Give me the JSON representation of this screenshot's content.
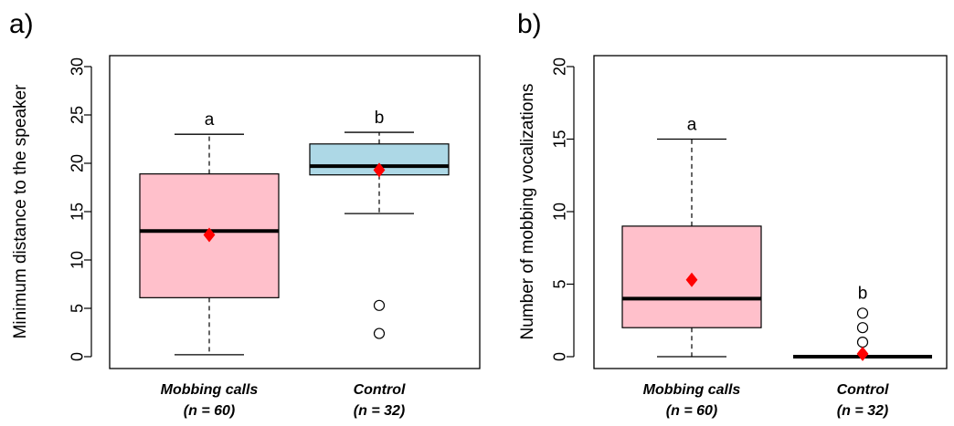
{
  "chart_data": [
    {
      "type": "box",
      "panel_label": "a)",
      "ylabel": "Minimum distance to the speaker",
      "ylim": [
        0,
        30
      ],
      "yticks": [
        0,
        5,
        10,
        15,
        20,
        25,
        30
      ],
      "categories": [
        {
          "name": "Mobbing calls",
          "n_label": "(n = 60)"
        },
        {
          "name": "Control",
          "n_label": "(n = 32)"
        }
      ],
      "boxes": [
        {
          "whisker_low": 0.2,
          "q1": 6.1,
          "median": 13.0,
          "q3": 18.9,
          "whisker_high": 23.0,
          "mean": 12.6,
          "outliers": [],
          "group_letter": "a",
          "fill": "#FFC0CB"
        },
        {
          "whisker_low": 14.8,
          "q1": 18.8,
          "median": 19.7,
          "q3": 22.0,
          "whisker_high": 23.2,
          "mean": 19.3,
          "outliers": [
            5.3,
            2.4
          ],
          "group_letter": "b",
          "fill": "#ADD8E6"
        }
      ],
      "mean_marker_color": "#FF0000",
      "grid": false
    },
    {
      "type": "box",
      "panel_label": "b)",
      "ylabel": "Number of mobbing vocalizations",
      "ylim": [
        0,
        20
      ],
      "yticks": [
        0,
        5,
        10,
        15,
        20
      ],
      "categories": [
        {
          "name": "Mobbing calls",
          "n_label": "(n = 60)"
        },
        {
          "name": "Control",
          "n_label": "(n = 32)"
        }
      ],
      "boxes": [
        {
          "whisker_low": 0,
          "q1": 2,
          "median": 4,
          "q3": 9,
          "whisker_high": 15,
          "mean": 5.3,
          "outliers": [],
          "group_letter": "a",
          "fill": "#FFC0CB"
        },
        {
          "whisker_low": 0,
          "q1": 0,
          "median": 0,
          "q3": 0,
          "whisker_high": 0,
          "mean": 0.2,
          "outliers": [
            3,
            2,
            1
          ],
          "group_letter": "b",
          "fill": "#ADD8E6"
        }
      ],
      "mean_marker_color": "#FF0000",
      "grid": false
    }
  ]
}
